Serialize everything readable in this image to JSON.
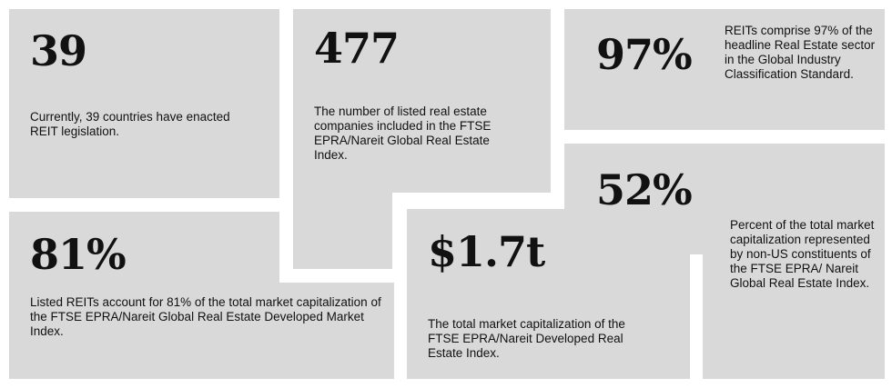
{
  "colors": {
    "panel": "#d9d9d9",
    "text": "#111111",
    "background": "#ffffff"
  },
  "cards": [
    {
      "stat": "39",
      "text": "Currently, 39 countries have enacted REIT legislation."
    },
    {
      "stat": "477",
      "text": "The number of listed real estate companies included in the FTSE EPRA/Nareit Global Real Estate Index."
    },
    {
      "stat": "97%",
      "text": "REITs comprise 97% of the headline Real Estate sector in the Global Industry Classification Standard."
    },
    {
      "stat": "52%",
      "text": "Percent of the total market capitalization represented by non-US constituents of the FTSE EPRA/ Nareit Global Real Estate Index."
    },
    {
      "stat": "81%",
      "text": "Listed REITs account for 81% of the total market capitalization of the FTSE EPRA/Nareit Global Real Estate Developed Market Index."
    },
    {
      "stat": "$1.7t",
      "text": "The total market capitalization of the FTSE EPRA/Nareit Developed Real Estate Index."
    }
  ]
}
